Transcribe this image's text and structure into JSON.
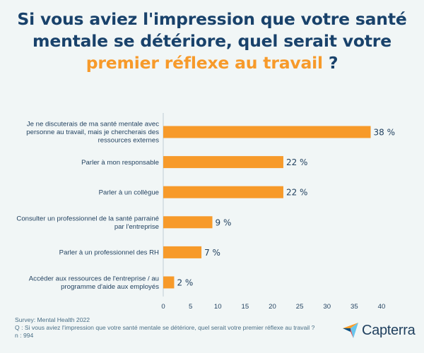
{
  "title": {
    "line1": "Si vous aviez l'impression que votre santé",
    "line2": "mentale se détériore, quel serait votre",
    "highlight": "premier réflexe au travail",
    "end": " ?"
  },
  "chart_data": {
    "type": "bar",
    "orientation": "horizontal",
    "categories": [
      [
        "Je ne discuterais de ma santé mentale avec",
        "personne au travail, mais je chercherais des",
        "ressources externes"
      ],
      [
        "Parler à mon responsable"
      ],
      [
        "Parler à un collègue"
      ],
      [
        "Consulter un professionnel de la santé parrainé",
        "par l'entreprise"
      ],
      [
        "Parler à un professionnel des RH"
      ],
      [
        "Accéder aux ressources de l'entreprise / au",
        "programme d'aide aux employés"
      ]
    ],
    "values": [
      38,
      22,
      22,
      9,
      7,
      2
    ],
    "value_labels": [
      "38 %",
      "22 %",
      "22 %",
      "9 %",
      "7 %",
      "2 %"
    ],
    "xlim": [
      0,
      40
    ],
    "xticks": [
      0,
      5,
      10,
      15,
      20,
      25,
      30,
      35,
      40
    ],
    "grid": false,
    "bar_color": "#f79a2a"
  },
  "footer": {
    "survey": "Survey: Mental Health 2022",
    "question": "Q : Si vous aviez l'impression que votre santé mentale se détériore, quel serait votre premier réflexe au travail ?",
    "n": "n : 994"
  },
  "logo": {
    "text": "Capterra"
  },
  "colors": {
    "title": "#19426b",
    "accent": "#f79a2a",
    "text": "#1f3f5e",
    "background": "#f1f6f6"
  }
}
